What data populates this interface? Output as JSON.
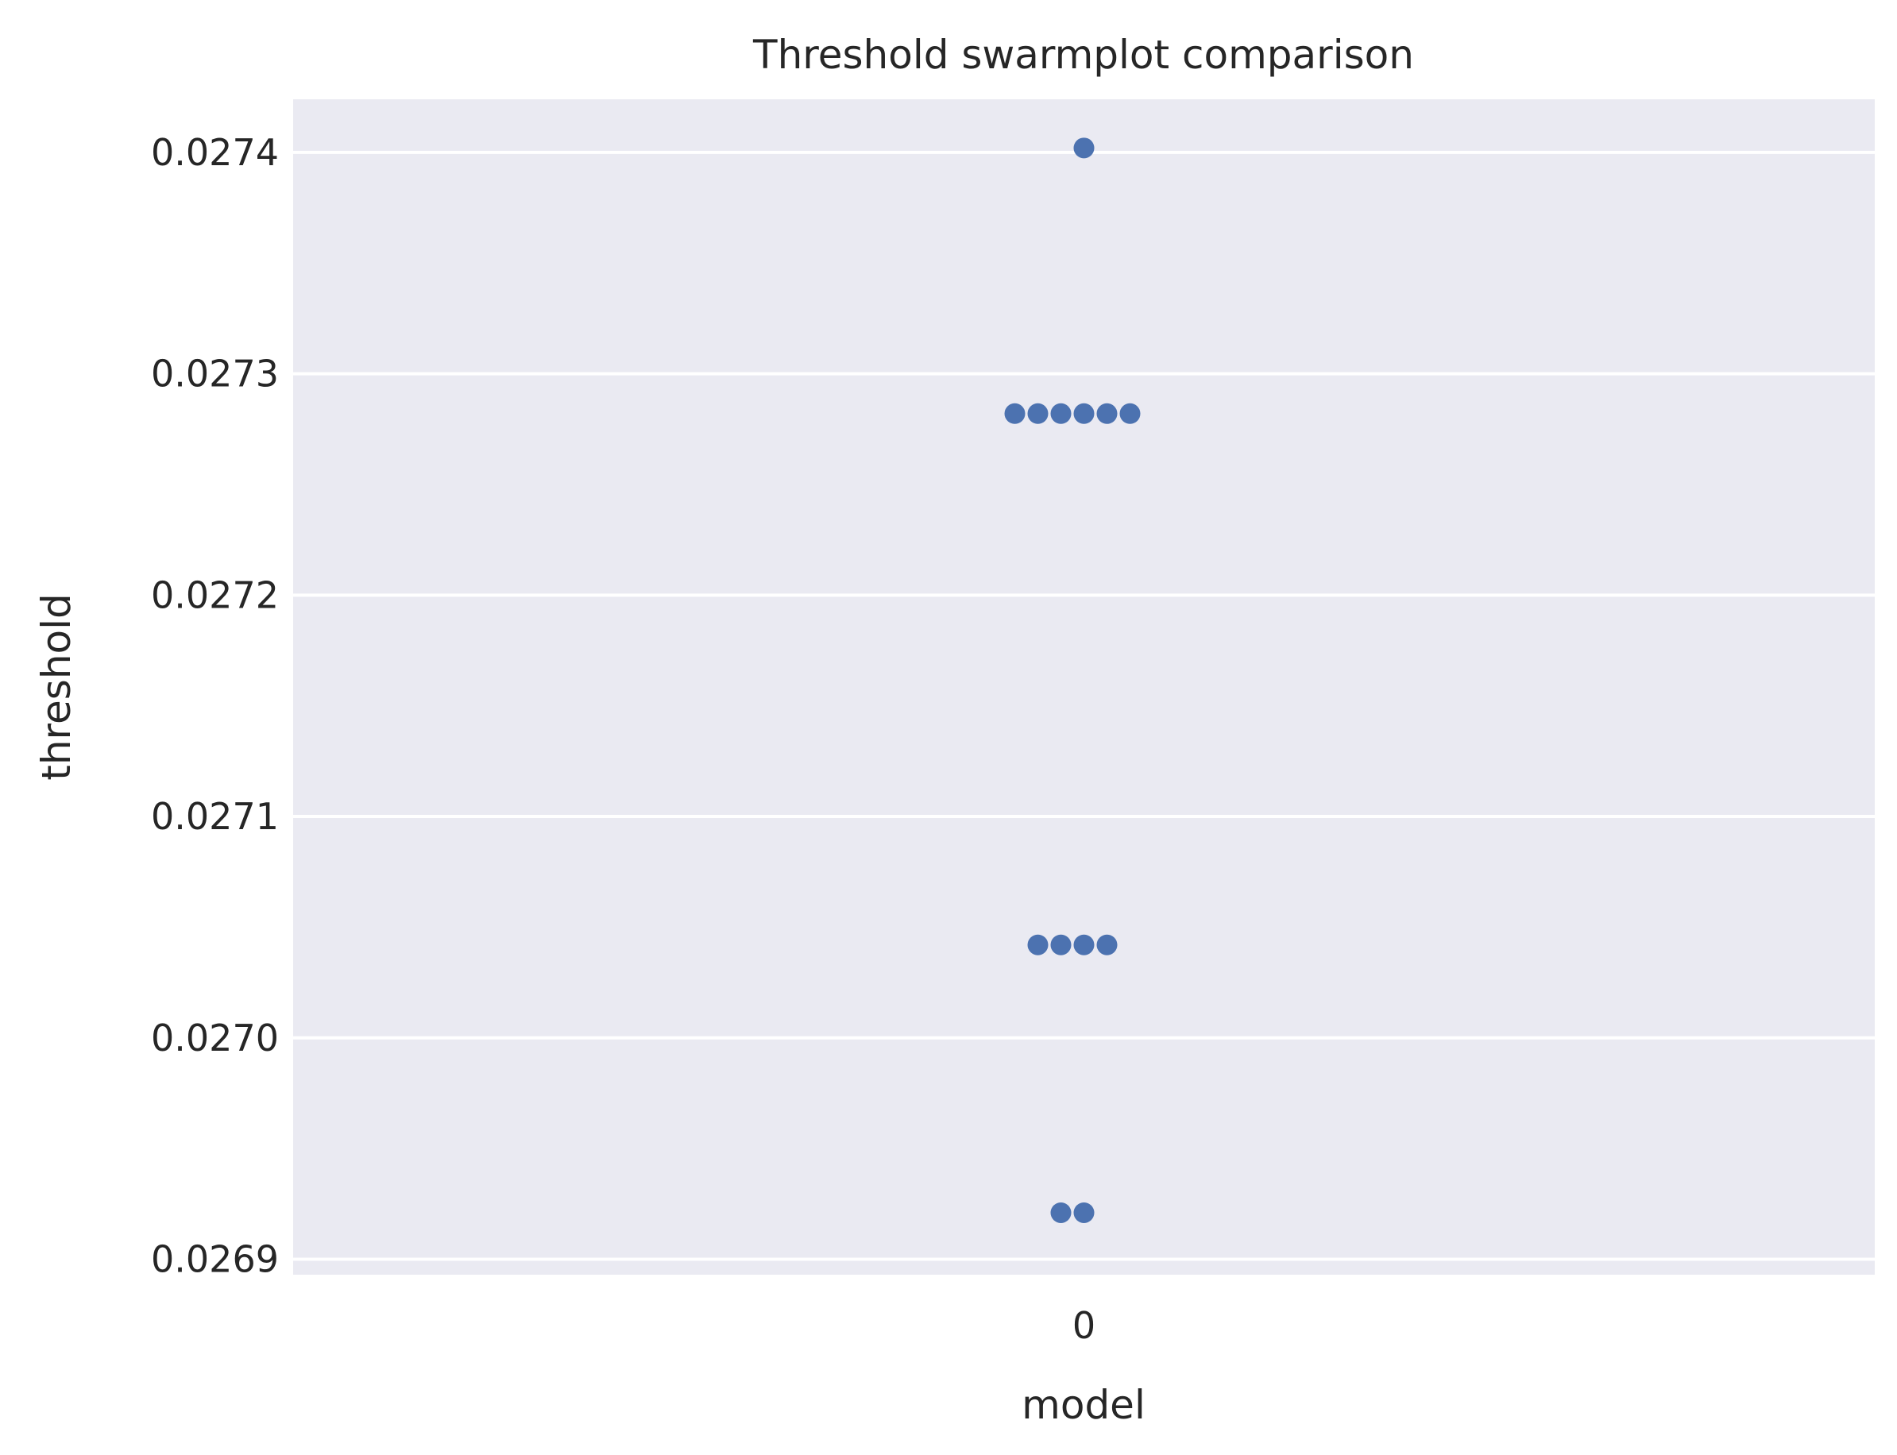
{
  "chart_data": {
    "type": "scatter",
    "subtype": "swarm",
    "title": "Threshold swarmplot comparison",
    "xlabel": "model",
    "ylabel": "threshold",
    "categories": [
      "0"
    ],
    "ylim": [
      0.026893,
      0.027424
    ],
    "yticks": [
      0.0269,
      0.027,
      0.0271,
      0.0272,
      0.0273,
      0.0274
    ],
    "ytick_labels": [
      "0.0269",
      "0.0270",
      "0.0271",
      "0.0272",
      "0.0273",
      "0.0274"
    ],
    "series": [
      {
        "category": "0",
        "values": [
          0.027402,
          0.027282,
          0.027282,
          0.027282,
          0.027282,
          0.027282,
          0.027282,
          0.027042,
          0.027042,
          0.027042,
          0.027042,
          0.026921,
          0.026921
        ]
      }
    ],
    "grid": true,
    "background": "#eaeaf2",
    "marker_color": "#4c72b0",
    "legend": "none"
  }
}
